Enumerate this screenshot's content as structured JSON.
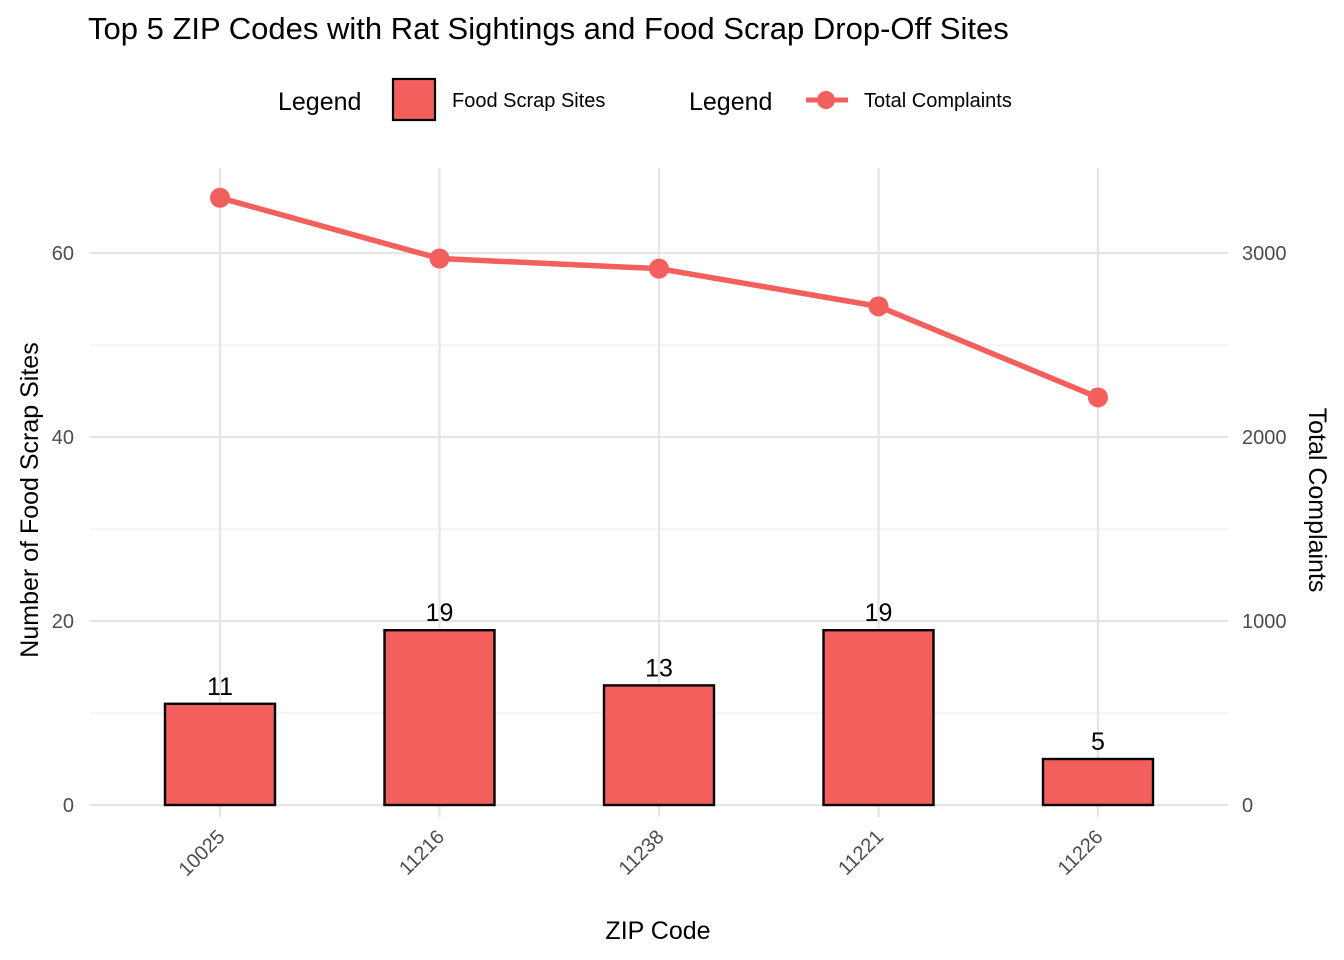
{
  "chart_data": {
    "type": "bar",
    "title": "Top 5 ZIP Codes with Rat Sightings and Food Scrap Drop-Off Sites",
    "xlabel": "ZIP Code",
    "ylabel": "Number of Food Scrap Sites",
    "y2label": "Total Complaints",
    "categories": [
      "10025",
      "11216",
      "11238",
      "11221",
      "11226"
    ],
    "series": [
      {
        "name": "Food Scrap Sites",
        "type": "bar",
        "axis": "left",
        "values": [
          11,
          19,
          13,
          19,
          5
        ],
        "color": "#F25F5C",
        "edge_color": "#000000"
      },
      {
        "name": "Total Complaints",
        "type": "line",
        "axis": "right",
        "values": [
          3300,
          2970,
          2915,
          2710,
          2215
        ],
        "color": "#F25F5C"
      }
    ],
    "ylim": [
      0,
      70
    ],
    "yticks": [
      0,
      20,
      40,
      60
    ],
    "y2lim": [
      0,
      3500
    ],
    "y2ticks": [
      0,
      1000,
      2000,
      3000
    ],
    "data_labels": [
      "11",
      "19",
      "13",
      "19",
      "5"
    ],
    "legend": {
      "position": "top",
      "entries": [
        {
          "title": "Legend",
          "label": "Food Scrap Sites",
          "kind": "bar"
        },
        {
          "title": "Legend",
          "label": "Total Complaints",
          "kind": "line-point"
        }
      ]
    },
    "grid": true
  }
}
